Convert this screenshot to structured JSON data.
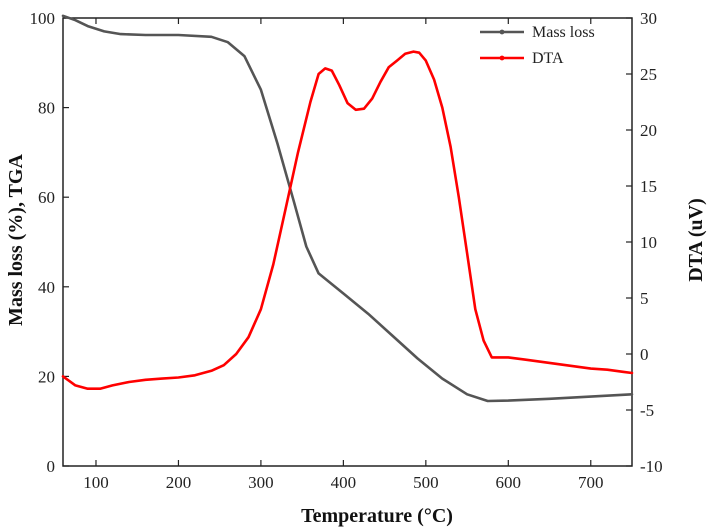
{
  "chart_data": {
    "type": "line",
    "xlabel": "Temperature (°C)",
    "ylabel_left": "Mass loss (%), TGA",
    "ylabel_right": "DTA (uV)",
    "xlim": [
      60,
      750
    ],
    "ylim_left": [
      0,
      100
    ],
    "ylim_right": [
      -10,
      30
    ],
    "xticks": [
      100,
      200,
      300,
      400,
      500,
      600,
      700
    ],
    "yticks_left": [
      0,
      20,
      40,
      60,
      80,
      100
    ],
    "yticks_right": [
      -10,
      -5,
      0,
      5,
      10,
      15,
      20,
      25,
      30
    ],
    "grid": false,
    "legend_position": "top-right",
    "series": [
      {
        "name": "Mass loss",
        "axis": "left",
        "color": "#555555",
        "x": [
          60,
          75,
          90,
          110,
          130,
          160,
          200,
          240,
          260,
          280,
          300,
          320,
          340,
          355,
          370,
          380,
          400,
          430,
          460,
          490,
          520,
          550,
          575,
          600,
          650,
          700,
          750
        ],
        "y": [
          100.5,
          99.5,
          98.2,
          97,
          96.4,
          96.2,
          96.2,
          95.8,
          94.6,
          91.5,
          84,
          72,
          59,
          49,
          43,
          41.5,
          38.5,
          34,
          29,
          24,
          19.5,
          16,
          14.5,
          14.6,
          15,
          15.5,
          16
        ]
      },
      {
        "name": "DTA",
        "axis": "right",
        "color": "#ff0000",
        "x": [
          60,
          75,
          90,
          105,
          120,
          140,
          160,
          180,
          200,
          220,
          240,
          255,
          270,
          285,
          300,
          315,
          330,
          345,
          360,
          370,
          378,
          386,
          395,
          405,
          415,
          425,
          435,
          445,
          455,
          465,
          475,
          485,
          492,
          500,
          510,
          520,
          530,
          540,
          550,
          560,
          570,
          580,
          590,
          600,
          620,
          640,
          660,
          680,
          700,
          720,
          740,
          750
        ],
        "y": [
          -2,
          -2.8,
          -3.1,
          -3.1,
          -2.8,
          -2.5,
          -2.3,
          -2.2,
          -2.1,
          -1.9,
          -1.5,
          -1,
          0,
          1.5,
          4,
          8,
          13,
          18,
          22.5,
          25,
          25.5,
          25.3,
          24,
          22.4,
          21.8,
          21.9,
          22.8,
          24.3,
          25.6,
          26.2,
          26.8,
          27,
          26.9,
          26.2,
          24.5,
          22,
          18.5,
          14,
          9,
          4,
          1.2,
          -0.3,
          -0.3,
          -0.3,
          -0.5,
          -0.7,
          -0.9,
          -1.1,
          -1.3,
          -1.4,
          -1.6,
          -1.7
        ]
      }
    ]
  }
}
